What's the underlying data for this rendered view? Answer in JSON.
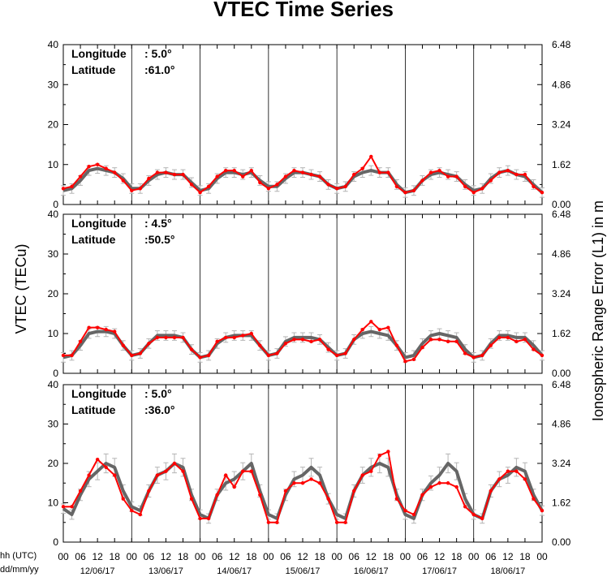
{
  "chart_data": {
    "type": "line",
    "title": "VTEC Time Series",
    "ylabel_left": "VTEC (TECu)",
    "ylabel_right": "Ionospheric Range Error (L1) in m",
    "x_corner_label": [
      "hh (UTC)",
      "dd/mm/yy"
    ],
    "hour_ticks": [
      "00",
      "06",
      "12",
      "18"
    ],
    "final_hour_tick": "00",
    "days": [
      "12/06/17",
      "13/06/17",
      "14/06/17",
      "15/06/17",
      "16/06/17",
      "17/06/17",
      "18/06/17"
    ],
    "ylim": [
      0,
      40
    ],
    "y_ticks": [
      0,
      10,
      20,
      30,
      40
    ],
    "y_right_ticks": [
      "0.00",
      "1.62",
      "3.24",
      "4.86",
      "6.48"
    ],
    "series_colors": {
      "observed": "#ff0000",
      "reference": "#666666",
      "errorbar": "#b4b4b4"
    },
    "panels": [
      {
        "longitude_label": "Longitude",
        "longitude_value": ":  5.0°",
        "latitude_label": "Latitude",
        "latitude_value": ":61.0°",
        "hours": [
          0,
          3,
          6,
          9,
          12,
          15,
          18,
          21,
          24,
          27,
          30,
          33,
          36,
          39,
          42,
          45,
          48,
          51,
          54,
          57,
          60,
          63,
          66,
          69,
          72,
          75,
          78,
          81,
          84,
          87,
          90,
          93,
          96,
          99,
          102,
          105,
          108,
          111,
          114,
          117,
          120,
          123,
          126,
          129,
          132,
          135,
          138,
          141,
          144,
          147,
          150,
          153,
          156,
          159,
          162,
          165,
          168
        ],
        "reference": [
          3.5,
          4,
          6,
          8.5,
          9,
          8.5,
          8,
          6.5,
          4,
          4,
          6,
          7.5,
          8,
          7.5,
          7.5,
          5.5,
          3.5,
          4,
          6.5,
          8,
          8,
          7.5,
          8,
          6,
          4.5,
          4.5,
          6.5,
          8,
          8,
          7.5,
          7,
          5,
          4,
          4.5,
          7,
          8,
          8.5,
          8,
          8,
          5,
          3,
          3.5,
          6,
          7.5,
          8,
          7.5,
          7,
          5,
          3.5,
          4,
          6.5,
          8,
          8.5,
          7.5,
          7,
          5,
          3
        ],
        "observed": [
          4,
          4.5,
          7,
          9.5,
          10,
          9,
          8,
          6,
          3.5,
          4,
          6.5,
          8,
          8,
          7.5,
          7.5,
          5,
          3,
          4.5,
          7,
          8.5,
          8.5,
          7,
          8.5,
          5.5,
          4,
          5,
          7,
          8.5,
          8,
          7.5,
          7,
          5,
          4,
          4.5,
          7.5,
          9,
          12,
          8,
          8,
          4.5,
          3,
          3.5,
          6,
          8,
          8.5,
          7,
          7,
          4.5,
          3,
          4,
          6,
          8,
          8.5,
          7.5,
          7.5,
          4.5,
          3
        ]
      },
      {
        "longitude_label": "Longitude",
        "longitude_value": ":  4.5°",
        "latitude_label": "Latitude",
        "latitude_value": ":50.5°",
        "hours": [
          0,
          3,
          6,
          9,
          12,
          15,
          18,
          21,
          24,
          27,
          30,
          33,
          36,
          39,
          42,
          45,
          48,
          51,
          54,
          57,
          60,
          63,
          66,
          69,
          72,
          75,
          78,
          81,
          84,
          87,
          90,
          93,
          96,
          99,
          102,
          105,
          108,
          111,
          114,
          117,
          120,
          123,
          126,
          129,
          132,
          135,
          138,
          141,
          144,
          147,
          150,
          153,
          156,
          159,
          162,
          165,
          168
        ],
        "reference": [
          4,
          4.5,
          7,
          10,
          10.5,
          10.5,
          10,
          7,
          4.5,
          5,
          7.5,
          9.5,
          9.5,
          9.5,
          9,
          6,
          4,
          4.5,
          7.5,
          9,
          9.5,
          9.5,
          9.5,
          7,
          4.5,
          5,
          8,
          9,
          9,
          9,
          8.5,
          6.5,
          4.5,
          5,
          8.5,
          10,
          10.5,
          10,
          9.5,
          7,
          4,
          4.5,
          7.5,
          9.5,
          10,
          9.5,
          9,
          6,
          4,
          4.5,
          7.5,
          9.5,
          9.5,
          9,
          9,
          7,
          4.5
        ],
        "observed": [
          4.5,
          4.5,
          8,
          11.5,
          11.5,
          11,
          10.5,
          7,
          4.5,
          5,
          7.5,
          9,
          9,
          9,
          9,
          6,
          4,
          4.5,
          8,
          9,
          9,
          9.5,
          10,
          7,
          4.5,
          5,
          7.5,
          8.5,
          8.5,
          8,
          8.5,
          6,
          4.5,
          5,
          8.5,
          11,
          13,
          11,
          11.5,
          7,
          3,
          3.5,
          6.5,
          8.5,
          8.5,
          8,
          8,
          5,
          4,
          4.5,
          7,
          9,
          9,
          8,
          8.5,
          6,
          4.5
        ]
      },
      {
        "longitude_label": "Longitude",
        "longitude_value": ":  5.0°",
        "latitude_label": "Latitude",
        "latitude_value": ":36.0°",
        "hours": [
          0,
          3,
          6,
          9,
          12,
          15,
          18,
          21,
          24,
          27,
          30,
          33,
          36,
          39,
          42,
          45,
          48,
          51,
          54,
          57,
          60,
          63,
          66,
          69,
          72,
          75,
          78,
          81,
          84,
          87,
          90,
          93,
          96,
          99,
          102,
          105,
          108,
          111,
          114,
          117,
          120,
          123,
          126,
          129,
          132,
          135,
          138,
          141,
          144,
          147,
          150,
          153,
          156,
          159,
          162,
          165,
          168
        ],
        "reference": [
          8.5,
          7,
          12,
          16,
          18,
          20,
          19,
          13,
          9,
          8,
          13,
          17,
          18,
          20,
          19,
          12,
          7,
          6,
          12,
          15,
          16,
          18,
          20,
          13,
          7,
          6,
          12,
          16,
          17,
          19,
          17,
          11,
          7,
          6,
          13,
          17,
          19,
          20,
          19,
          12,
          7,
          6,
          12,
          15,
          17,
          20,
          18,
          11,
          7,
          6,
          13,
          16,
          17,
          19,
          18,
          12,
          8
        ],
        "observed": [
          9,
          9,
          13,
          17,
          21,
          19,
          17,
          11,
          8,
          7,
          13,
          17,
          18,
          20,
          18,
          11,
          6,
          6,
          12,
          17,
          14,
          18,
          18,
          12,
          5,
          5,
          13,
          15,
          15,
          16,
          15,
          11,
          5,
          5,
          13,
          17,
          18,
          22,
          23,
          11,
          8,
          7,
          12,
          14,
          15,
          15,
          14,
          9,
          7,
          6,
          13,
          16,
          18,
          18,
          16,
          11,
          8
        ]
      }
    ]
  }
}
